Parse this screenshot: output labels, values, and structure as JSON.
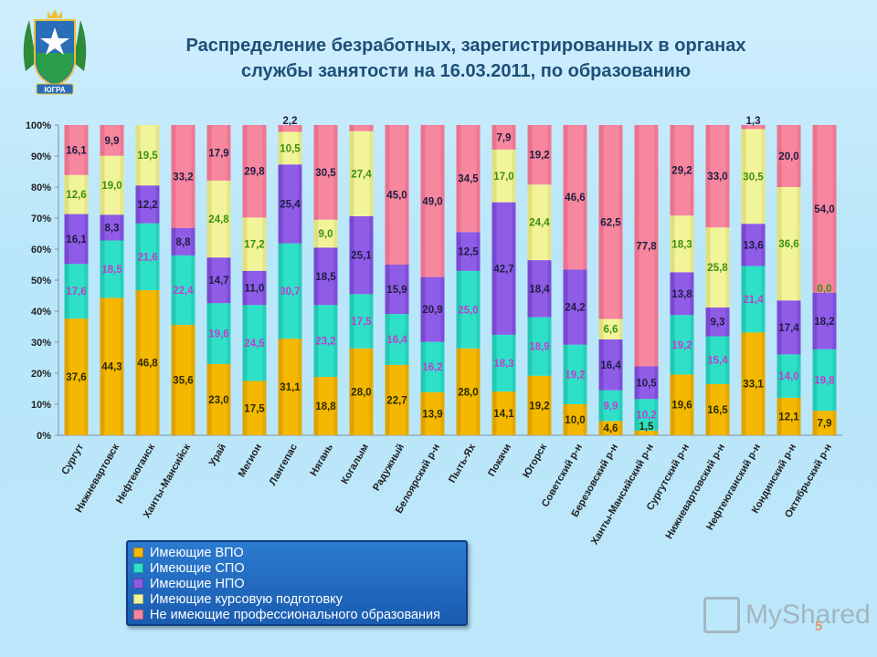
{
  "title": {
    "line1": "Распределение  безработных, зарегистрированных в органах",
    "line2": "службы занятости на 16.03.2011, по образованию"
  },
  "emblem": {
    "text": "ЮГРА",
    "icon": "coat-of-arms-icon"
  },
  "colors": {
    "vpo": "#f5b800",
    "spo": "#2ee0c8",
    "npo": "#8f5ce8",
    "kurs": "#f2f49a",
    "none": "#f7879f"
  },
  "chart_data": {
    "type": "bar",
    "stacked": true,
    "percent": true,
    "yticks": [
      "0%",
      "10%",
      "20%",
      "30%",
      "40%",
      "50%",
      "60%",
      "70%",
      "80%",
      "90%",
      "100%"
    ],
    "ylim": [
      0,
      100
    ],
    "categories": [
      "Сургут",
      "Нижневартовск",
      "Нефтеюганск",
      "Ханты-Мансийск",
      "Урай",
      "Мегион",
      "Лангепас",
      "Нягань",
      "Когалым",
      "Радужный",
      "Белоярский р-н",
      "Пыть-Ях",
      "Покачи",
      "Югорск",
      "Советский р-н",
      "Березовский р-н",
      "Ханты-Мансийский р-н",
      "Сургутский р-н",
      "Нижневартовский р-н",
      "Нефтеюганский р-н",
      "Кондинский р-н",
      "Октябрьский р-н"
    ],
    "series": [
      {
        "name": "Имеющие ВПО",
        "key": "vpo",
        "labels": [
          "37,6",
          "44,3",
          "46,8",
          "35,6",
          "23,0",
          "17,5",
          "31,1",
          "18,8",
          "28,0",
          "22,7",
          "13,9",
          "28,0",
          "14,1",
          "19,2",
          "10,0",
          "4,6",
          "1,5",
          "19,6",
          "16,5",
          "33,1",
          "12,1",
          "7,9"
        ],
        "values": [
          37.6,
          44.3,
          46.8,
          35.6,
          23.0,
          17.5,
          31.1,
          18.8,
          28.0,
          22.7,
          13.9,
          28.0,
          14.1,
          19.2,
          10.0,
          4.6,
          1.5,
          19.6,
          16.5,
          33.1,
          12.1,
          7.9
        ]
      },
      {
        "name": "Имеющие СПО",
        "key": "spo",
        "labels": [
          "17,6",
          "18,5",
          "21,6",
          "22,4",
          "19,6",
          "24,5",
          "30,7",
          "23,2",
          "17,5",
          "16,4",
          "16,2",
          "25,0",
          "18,3",
          "18,9",
          "19,2",
          "9,9",
          "10,2",
          "19,2",
          "15,4",
          "21,4",
          "14,0",
          "19,8"
        ],
        "values": [
          17.6,
          18.5,
          21.6,
          22.4,
          19.6,
          24.5,
          30.7,
          23.2,
          17.5,
          16.4,
          16.2,
          25.0,
          18.3,
          18.9,
          19.2,
          9.9,
          10.2,
          19.2,
          15.4,
          21.4,
          14.0,
          19.8
        ]
      },
      {
        "name": "Имеющие НПО",
        "key": "npo",
        "labels": [
          "16,1",
          "8,3",
          "12,2",
          "8,8",
          "14,7",
          "11,0",
          "25,4",
          "18,5",
          "25,1",
          "15,9",
          "20,9",
          "12,5",
          "42,7",
          "18,4",
          "24,2",
          "16,4",
          "10,5",
          "13,8",
          "9,3",
          "13,6",
          "17,4",
          "18,2"
        ],
        "values": [
          16.1,
          8.3,
          12.2,
          8.8,
          14.7,
          11.0,
          25.4,
          18.5,
          25.1,
          15.9,
          20.9,
          12.5,
          42.7,
          18.4,
          24.2,
          16.4,
          10.5,
          13.8,
          9.3,
          13.6,
          17.4,
          18.2
        ]
      },
      {
        "name": "Имеющие курсовую подготовку",
        "key": "kurs",
        "labels": [
          "12,6",
          "19,0",
          "19,5",
          "",
          "24,8",
          "17,2",
          "10,5",
          "9,0",
          "27,4",
          "",
          "",
          "",
          "17,0",
          "24,4",
          "",
          "6,6",
          "",
          "18,3",
          "25,8",
          "30,5",
          "36,6",
          "0,0"
        ],
        "values": [
          12.6,
          19.0,
          19.5,
          0,
          24.8,
          17.2,
          10.5,
          9.0,
          27.4,
          0,
          0,
          0,
          17.0,
          24.4,
          0,
          6.6,
          0,
          18.3,
          25.8,
          30.5,
          36.6,
          0.0
        ]
      },
      {
        "name": "Не имеющие профессионального образования",
        "key": "none",
        "labels": [
          "16,1",
          "9,9",
          "",
          "33,2",
          "17,9",
          "29,8",
          "2,2",
          "30,5",
          "",
          "45,0",
          "49,0",
          "34,5",
          "7,9",
          "19,2",
          "46,6",
          "62,5",
          "77,8",
          "29,2",
          "33,0",
          "1,3",
          "20,0",
          "54,0"
        ],
        "values": [
          16.1,
          9.9,
          0,
          33.2,
          17.9,
          29.8,
          2.2,
          30.5,
          2.0,
          45.0,
          49.0,
          34.5,
          7.9,
          19.2,
          46.6,
          62.5,
          77.8,
          29.2,
          33.0,
          1.3,
          20.0,
          54.0
        ]
      }
    ]
  },
  "watermark": {
    "text": "MyShared"
  },
  "page_number": "5"
}
